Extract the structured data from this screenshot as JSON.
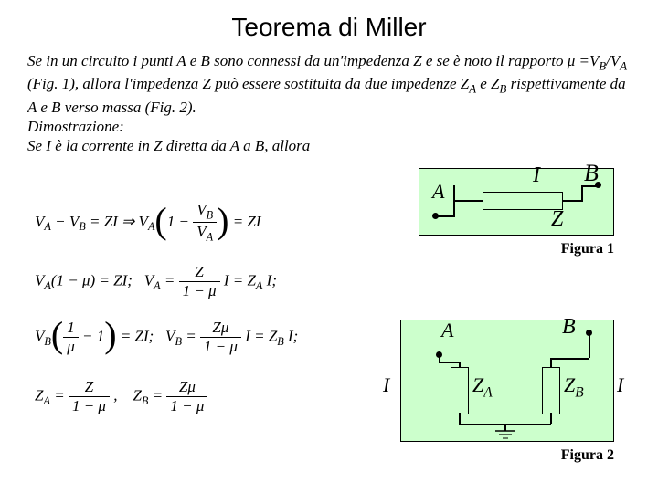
{
  "title": "Teorema di Miller",
  "intro_html": "Se in un circuito i punti A e B sono connessi da un'impedenza Z e se è noto il rapporto μ =V<span class=\"sub\">B</span>/V<span class=\"sub\">A</span> (Fig. 1), allora  l'impedenza Z può essere sostituita da due impedenze Z<span class=\"sub\">A</span> e Z<span class=\"sub\">B</span> rispettivamente da A e B verso massa (Fig. 2).<br>Dimostrazione:<br>Se I è la corrente in Z diretta da A a B, allora",
  "fig1": {
    "caption": "Figura 1",
    "A": "A",
    "B": "B",
    "I": "I",
    "Z": "Z"
  },
  "fig2": {
    "caption": "Figura 2",
    "A": "A",
    "B": "B",
    "I_left": "I",
    "I_right": "I",
    "ZA": "Z<span class=\"ss\">A</span>",
    "ZB": "Z<span class=\"ss\">B</span>"
  },
  "equations": {
    "line1_html": "V<span class=\"sub\">A</span> − V<span class=\"sub\">B</span> = ZI ⇒ V<span class=\"sub\">A</span><span class=\"paren-tall\">(</span>1 − <span class=\"frac\"><span class=\"num\">V<span class=\"sub\">B</span></span><span class=\"den\">V<span class=\"sub\">A</span></span></span><span class=\"paren-tall\">)</span> = ZI",
    "line2_html": "V<span class=\"sub\">A</span>(1 − μ) = ZI;&nbsp;&nbsp;&nbsp;V<span class=\"sub\">A</span> = <span class=\"frac\"><span class=\"num\">Z</span><span class=\"den\">1 − μ</span></span> I = Z<span class=\"sub\">A</span> I;",
    "line3_html": "V<span class=\"sub\">B</span><span class=\"paren-tall\">(</span><span class=\"frac\"><span class=\"num\">1</span><span class=\"den\">μ</span></span> − 1<span class=\"paren-tall\">)</span> = ZI;&nbsp;&nbsp;&nbsp;V<span class=\"sub\">B</span> = <span class=\"frac\"><span class=\"num\">Zμ</span><span class=\"den\">1 − μ</span></span> I = Z<span class=\"sub\">B</span> I;",
    "line4_html": "Z<span class=\"sub\">A</span> = <span class=\"frac\"><span class=\"num\">Z</span><span class=\"den\">1 − μ</span></span> ,&nbsp;&nbsp;&nbsp;&nbsp;Z<span class=\"sub\">B</span> = <span class=\"frac\"><span class=\"num\">Zμ</span><span class=\"den\">1 − μ</span></span>"
  },
  "colors": {
    "figure_bg": "#ccffcc",
    "page_bg": "#ffffff",
    "text": "#000000"
  },
  "typography": {
    "title_font": "Arial",
    "title_size_pt": 21,
    "body_font": "Times New Roman",
    "body_size_pt": 13
  }
}
